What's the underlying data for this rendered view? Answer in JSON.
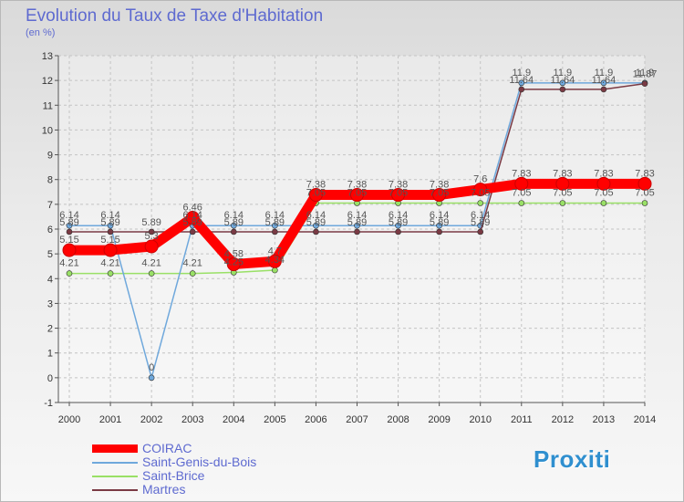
{
  "title": "Evolution du Taux de Taxe d'Habitation",
  "subtitle": "(en %)",
  "logo_text": "Proxiti",
  "chart_data": {
    "type": "line",
    "title": "Evolution du Taux de Taxe d'Habitation",
    "ylabel": "(en %)",
    "xlabel": "",
    "ylim": [
      -1,
      13
    ],
    "yticks": [
      -1,
      0,
      1,
      2,
      3,
      4,
      5,
      6,
      7,
      8,
      9,
      10,
      11,
      12,
      13
    ],
    "categories": [
      "2000",
      "2001",
      "2002",
      "2003",
      "2004",
      "2005",
      "2006",
      "2007",
      "2008",
      "2009",
      "2010",
      "2011",
      "2012",
      "2013",
      "2014"
    ],
    "grid": true,
    "legend": "bottom-left",
    "series": [
      {
        "name": "COIRAC",
        "color": "#ff0000",
        "values": [
          5.15,
          5.15,
          5.3,
          6.46,
          4.58,
          4.7,
          7.38,
          7.38,
          7.38,
          7.38,
          7.6,
          7.83,
          7.83,
          7.83,
          7.83
        ],
        "labels": [
          "5.15",
          "5.15",
          "5.3",
          "6.46",
          "4.58",
          "4.7",
          "7.38",
          "7.38",
          "7.38",
          "7.38",
          "7.6",
          "7.83",
          "7.83",
          "7.83",
          "7.83"
        ]
      },
      {
        "name": "Saint-Genis-du-Bois",
        "color": "#6fa8dc",
        "values": [
          6.14,
          6.14,
          0,
          6.14,
          6.14,
          6.14,
          6.14,
          6.14,
          6.14,
          6.14,
          6.14,
          11.9,
          11.9,
          11.9,
          11.9
        ],
        "labels": [
          "6.14",
          "6.14",
          "0",
          "6.14",
          "6.14",
          "6.14",
          "6.14",
          "6.14",
          "6.14",
          "6.14",
          "6.14",
          "11.9",
          "11.9",
          "11.9",
          "11.9"
        ]
      },
      {
        "name": "Saint-Brice",
        "color": "#99e066",
        "values": [
          4.21,
          4.21,
          4.21,
          4.21,
          4.25,
          4.34,
          7.05,
          7.05,
          7.05,
          7.05,
          7.05,
          7.05,
          7.05,
          7.05,
          7.05
        ],
        "labels": [
          "4.21",
          "4.21",
          "4.21",
          "4.21",
          "4.25",
          "4.34",
          "7.05",
          "7.05",
          "7.05",
          "7.05",
          "7.05",
          "7.05",
          "7.05",
          "7.05",
          "7.05"
        ]
      },
      {
        "name": "Martres",
        "color": "#7a3a44",
        "values": [
          5.89,
          5.89,
          5.89,
          5.89,
          5.89,
          5.89,
          5.89,
          5.89,
          5.89,
          5.89,
          5.89,
          11.64,
          11.64,
          11.64,
          11.87
        ],
        "labels": [
          "5.89",
          "5.89",
          "5.89",
          "5.89",
          "5.89",
          "5.89",
          "5.89",
          "5.89",
          "5.89",
          "5.89",
          "5.89",
          "11.64",
          "11.64",
          "11.64",
          "11.87"
        ]
      }
    ]
  }
}
